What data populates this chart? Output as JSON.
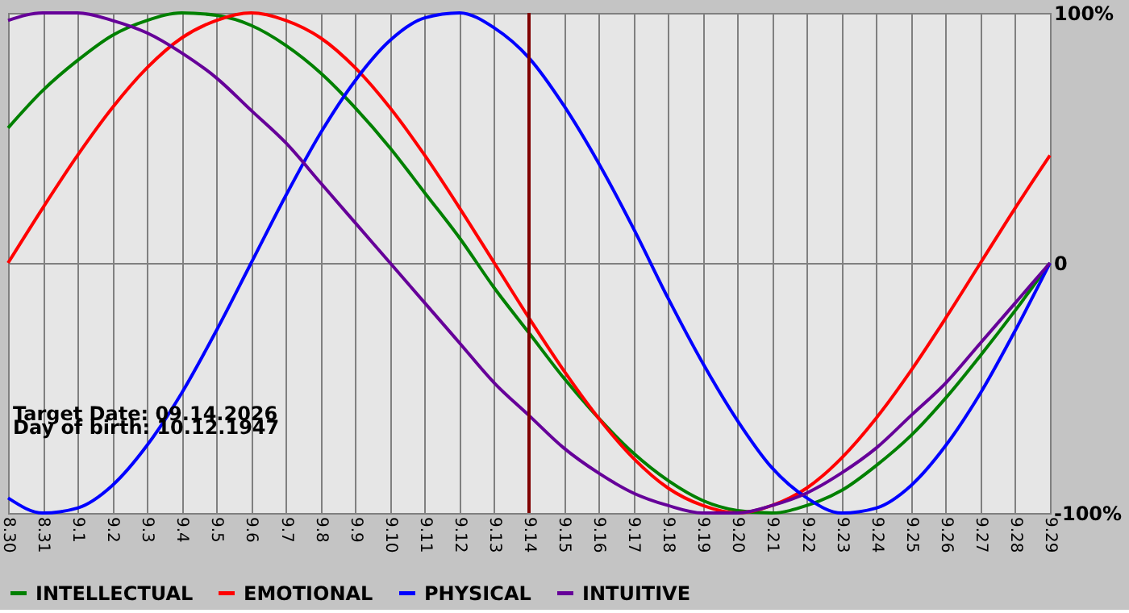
{
  "chart_data": {
    "type": "line",
    "x": [
      "2026-08-30",
      "2026-08-31",
      "2026-09-01",
      "2026-09-02",
      "2026-09-03",
      "2026-09-04",
      "2026-09-05",
      "2026-09-06",
      "2026-09-07",
      "2026-09-08",
      "2026-09-09",
      "2026-09-10",
      "2026-09-11",
      "2026-09-12",
      "2026-09-13",
      "2026-09-14",
      "2026-09-15",
      "2026-09-16",
      "2026-09-17",
      "2026-09-18",
      "2026-09-19",
      "2026-09-20",
      "2026-09-21",
      "2026-09-22",
      "2026-09-23",
      "2026-09-24",
      "2026-09-25",
      "2026-09-26",
      "2026-09-27",
      "2026-09-28",
      "2026-09-29"
    ],
    "series": [
      {
        "name": "INTELLECTUAL",
        "color": "#008000",
        "values": [
          54,
          69,
          81,
          91,
          97,
          100,
          99,
          95,
          87,
          76,
          62,
          46,
          28,
          10,
          -10,
          -28,
          -46,
          -62,
          -76,
          -87,
          -95,
          -99,
          -100,
          -97,
          -91,
          -81,
          -69,
          -54,
          -37,
          -19,
          0
        ]
      },
      {
        "name": "EMOTIONAL",
        "color": "#ff0000",
        "values": [
          0,
          22,
          43,
          62,
          78,
          90,
          97,
          100,
          97,
          90,
          78,
          62,
          43,
          22,
          0,
          -22,
          -43,
          -62,
          -78,
          -90,
          -97,
          -100,
          -97,
          -90,
          -78,
          -62,
          -43,
          -22,
          0,
          22,
          43
        ]
      },
      {
        "name": "PHYSICAL",
        "color": "#0000ff",
        "values": [
          -94,
          -100,
          -98,
          -89,
          -73,
          -52,
          -27,
          0,
          27,
          52,
          73,
          89,
          98,
          100,
          94,
          82,
          63,
          40,
          14,
          -14,
          -40,
          -63,
          -82,
          -94,
          -100,
          -98,
          -89,
          -73,
          -52,
          -27,
          0
        ]
      },
      {
        "name": "INTUITIVE",
        "color": "#660099",
        "values": [
          97,
          100,
          100,
          97,
          92,
          84,
          74,
          61,
          48,
          32,
          16,
          0,
          -16,
          -32,
          -48,
          -61,
          -74,
          -84,
          -92,
          -97,
          -100,
          -100,
          -97,
          -92,
          -84,
          -74,
          -61,
          -48,
          -32,
          -16,
          0
        ]
      }
    ],
    "xlim": [
      "2026-08-30",
      "2026-09-29"
    ],
    "xticks": [
      {
        "value": "2026-08-30",
        "label": "8.30"
      },
      {
        "value": "2026-08-31",
        "label": "8.31"
      },
      {
        "value": "2026-09-01",
        "label": "9.1"
      },
      {
        "value": "2026-09-02",
        "label": "9.2"
      },
      {
        "value": "2026-09-03",
        "label": "9.3"
      },
      {
        "value": "2026-09-04",
        "label": "9.4"
      },
      {
        "value": "2026-09-05",
        "label": "9.5"
      },
      {
        "value": "2026-09-06",
        "label": "9.6"
      },
      {
        "value": "2026-09-07",
        "label": "9.7"
      },
      {
        "value": "2026-09-08",
        "label": "9.8"
      },
      {
        "value": "2026-09-09",
        "label": "9.9"
      },
      {
        "value": "2026-09-10",
        "label": "9.10"
      },
      {
        "value": "2026-09-11",
        "label": "9.11"
      },
      {
        "value": "2026-09-12",
        "label": "9.12"
      },
      {
        "value": "2026-09-13",
        "label": "9.13"
      },
      {
        "value": "2026-09-14",
        "label": "9.14"
      },
      {
        "value": "2026-09-15",
        "label": "9.15"
      },
      {
        "value": "2026-09-16",
        "label": "9.16"
      },
      {
        "value": "2026-09-17",
        "label": "9.17"
      },
      {
        "value": "2026-09-18",
        "label": "9.18"
      },
      {
        "value": "2026-09-19",
        "label": "9.19"
      },
      {
        "value": "2026-09-20",
        "label": "9.20"
      },
      {
        "value": "2026-09-21",
        "label": "9.21"
      },
      {
        "value": "2026-09-22",
        "label": "9.22"
      },
      {
        "value": "2026-09-23",
        "label": "9.23"
      },
      {
        "value": "2026-09-24",
        "label": "9.24"
      },
      {
        "value": "2026-09-25",
        "label": "9.25"
      },
      {
        "value": "2026-09-26",
        "label": "9.26"
      },
      {
        "value": "2026-09-27",
        "label": "9.27"
      },
      {
        "value": "2026-09-28",
        "label": "9.28"
      },
      {
        "value": "2026-09-29",
        "label": "9.29"
      }
    ],
    "ylim": [
      -100,
      100
    ],
    "yticks": [
      {
        "value": -100,
        "label": "-100%"
      },
      {
        "value": 0,
        "label": "0"
      },
      {
        "value": 100,
        "label": "100%"
      }
    ],
    "grid": true,
    "legend": "bottom",
    "marker": "none",
    "line_style": "solid",
    "ref_lines": [
      {
        "axis": "x",
        "value": "2026-09-14",
        "color": "#800000"
      }
    ],
    "annotations": [
      "Target Date: 09.14.2026",
      "Day of birth: 10.12.1947"
    ]
  }
}
